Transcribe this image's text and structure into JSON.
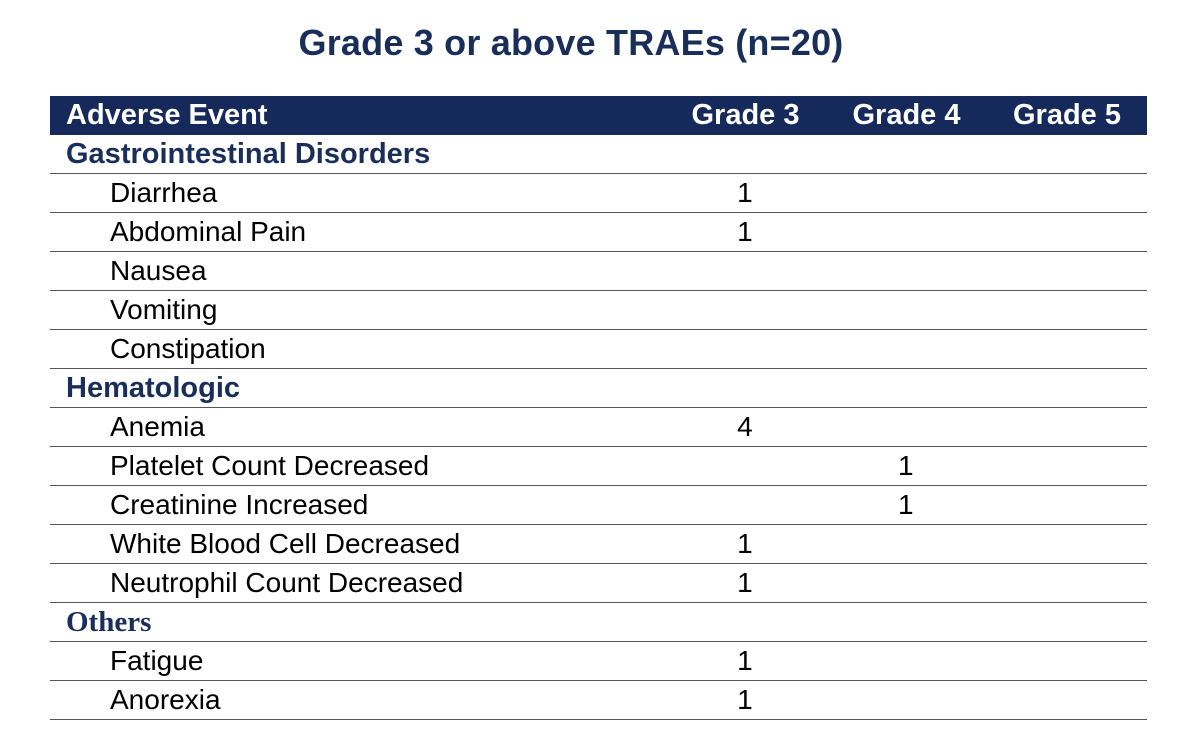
{
  "title": "Grade 3 or above TRAEs (n=20)",
  "table": {
    "headers": [
      "Adverse Event",
      "Grade 3",
      "Grade 4",
      "Grade 5"
    ],
    "sections": [
      {
        "category": "Gastrointestinal Disorders",
        "rows": [
          {
            "event": "Diarrhea",
            "g3": "1",
            "g4": "",
            "g5": ""
          },
          {
            "event": "Abdominal Pain",
            "g3": "1",
            "g4": "",
            "g5": ""
          },
          {
            "event": "Nausea",
            "g3": "",
            "g4": "",
            "g5": ""
          },
          {
            "event": "Vomiting",
            "g3": "",
            "g4": "",
            "g5": ""
          },
          {
            "event": "Constipation",
            "g3": "",
            "g4": "",
            "g5": ""
          }
        ]
      },
      {
        "category": "Hematologic",
        "rows": [
          {
            "event": "Anemia",
            "g3": "4",
            "g4": "",
            "g5": ""
          },
          {
            "event": "Platelet Count Decreased",
            "g3": "",
            "g4": "1",
            "g5": ""
          },
          {
            "event": "Creatinine Increased",
            "g3": "",
            "g4": "1",
            "g5": ""
          },
          {
            "event": "White Blood Cell Decreased",
            "g3": "1",
            "g4": "",
            "g5": ""
          },
          {
            "event": "Neutrophil Count Decreased",
            "g3": "1",
            "g4": "",
            "g5": ""
          }
        ]
      },
      {
        "category": "Others",
        "rows": [
          {
            "event": "Fatigue",
            "g3": "1",
            "g4": "",
            "g5": ""
          },
          {
            "event": "Anorexia",
            "g3": "1",
            "g4": "",
            "g5": ""
          }
        ]
      }
    ]
  },
  "colors": {
    "header_bg": "#15295a",
    "title": "#1a2e5a",
    "category": "#1a2e5a"
  }
}
